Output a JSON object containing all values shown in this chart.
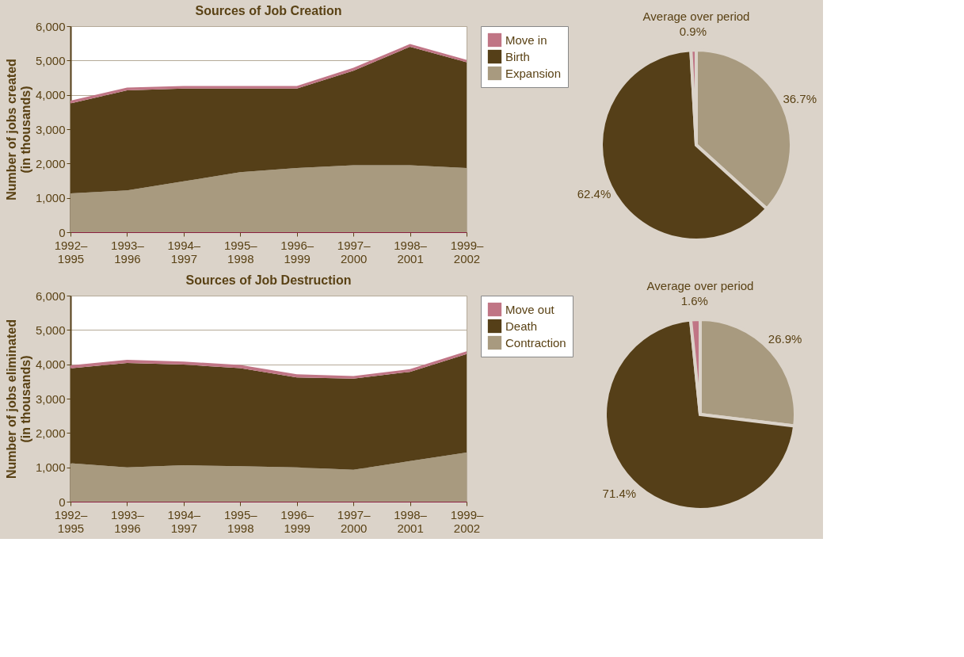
{
  "chart_data": [
    {
      "type": "area",
      "stacked": true,
      "title": "Sources of Job Creation",
      "ylabel": "Number of jobs created\n(in thousands)",
      "categories": [
        "1992–1995",
        "1993–1996",
        "1994–1997",
        "1995–1998",
        "1996–1999",
        "1997–2000",
        "1998–2001",
        "1999–2002"
      ],
      "series": [
        {
          "name": "Expansion",
          "color": "#a89a7f",
          "values": [
            1130,
            1220,
            1480,
            1750,
            1870,
            1950,
            1950,
            1870
          ]
        },
        {
          "name": "Birth",
          "color": "#553f18",
          "values": [
            2620,
            2910,
            2700,
            2430,
            2310,
            2750,
            3450,
            3080
          ]
        },
        {
          "name": "Move in",
          "color": "#c07585",
          "values": [
            80,
            80,
            80,
            80,
            80,
            90,
            80,
            70
          ]
        }
      ],
      "ylim": [
        0,
        6000
      ],
      "yticks": [
        0,
        {
          "value": 1000,
          "label": "1,000"
        },
        {
          "value": 2000,
          "label": "2,000"
        },
        {
          "value": 3000,
          "label": "3,000"
        },
        {
          "value": 4000,
          "label": "4,000"
        },
        {
          "value": 5000,
          "label": "5,000"
        },
        {
          "value": 6000,
          "label": "6,000"
        }
      ],
      "grid": "y",
      "legend": "right"
    },
    {
      "type": "pie",
      "title": "Average over period",
      "categories": [
        null,
        null,
        null
      ],
      "values": [
        36.7,
        62.4,
        0.9
      ],
      "colors": [
        "#a89a7f",
        "#553f18",
        "#c07585"
      ],
      "value_labels": [
        "36.7%",
        "62.4%",
        "0.9%"
      ]
    },
    {
      "type": "area",
      "stacked": true,
      "title": "Sources of Job Destruction",
      "ylabel": "Number of jobs eliminated\n(in thousands)",
      "categories": [
        "1992–1995",
        "1993–1996",
        "1994–1997",
        "1995–1998",
        "1996–1999",
        "1997–2000",
        "1998–2001",
        "1999–2002"
      ],
      "series": [
        {
          "name": "Contraction",
          "color": "#a89a7f",
          "values": [
            1120,
            1000,
            1060,
            1030,
            1000,
            930,
            1180,
            1430
          ]
        },
        {
          "name": "Death",
          "color": "#553f18",
          "values": [
            2760,
            3040,
            2930,
            2860,
            2620,
            2650,
            2600,
            2870
          ]
        },
        {
          "name": "Move out",
          "color": "#c07585",
          "values": [
            90,
            90,
            90,
            90,
            90,
            80,
            80,
            80
          ]
        }
      ],
      "ylim": [
        0,
        6000
      ],
      "yticks": [
        0,
        {
          "value": 1000,
          "label": "1,000"
        },
        {
          "value": 2000,
          "label": "2,000"
        },
        {
          "value": 3000,
          "label": "3,000"
        },
        {
          "value": 4000,
          "label": "4,000"
        },
        {
          "value": 5000,
          "label": "5,000"
        },
        {
          "value": 6000,
          "label": "6,000"
        }
      ],
      "grid": "y",
      "legend": "right"
    },
    {
      "type": "pie",
      "title": "Average over period",
      "categories": [
        null,
        null,
        null
      ],
      "values": [
        26.9,
        71.4,
        1.6
      ],
      "colors": [
        "#a89a7f",
        "#553f18",
        "#c07585"
      ],
      "value_labels": [
        "26.9%",
        "71.4%",
        "1.6%"
      ]
    }
  ]
}
